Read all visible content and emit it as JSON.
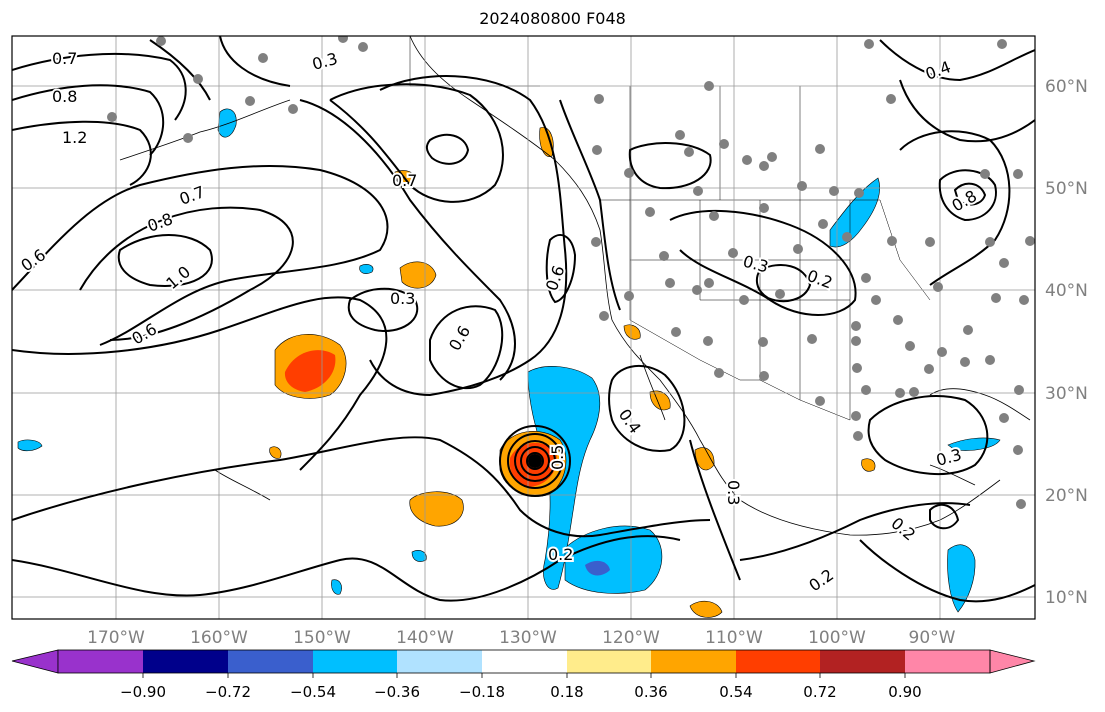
{
  "title": "2024080800 F048",
  "map": {
    "lon_labels": [
      "170°W",
      "160°W",
      "150°W",
      "140°W",
      "130°W",
      "120°W",
      "110°W",
      "100°W",
      "90°W"
    ],
    "lat_labels": [
      "60°N",
      "50°N",
      "40°N",
      "30°N",
      "20°N",
      "10°N"
    ],
    "contour_labels": [
      "0.7",
      "0.8",
      "1.2",
      "0.6",
      "0.8",
      "1.0",
      "0.7",
      "0.6",
      "0.3",
      "0.3",
      "0.6",
      "0.7",
      "0.4",
      "0.3",
      "0.2",
      "0.2",
      "0.3",
      "0.2",
      "0.3",
      "0.8",
      "0.2",
      "0.4",
      "0.5",
      "0.6"
    ],
    "grid_color": "#999999",
    "tick_label_color": "#808080",
    "station_color": "#808080"
  },
  "colorbar": {
    "tick_labels": [
      "−0.90",
      "−0.72",
      "−0.54",
      "−0.36",
      "−0.18",
      "0.18",
      "0.36",
      "0.54",
      "0.72",
      "0.90"
    ],
    "colors": [
      "#9932cc",
      "#00008b",
      "#3a5fcd",
      "#00bfff",
      "#b0e2ff",
      "#ffffff",
      "#ffec8b",
      "#ffa500",
      "#ff3e00",
      "#b22222",
      "#ff86a8"
    ]
  }
}
